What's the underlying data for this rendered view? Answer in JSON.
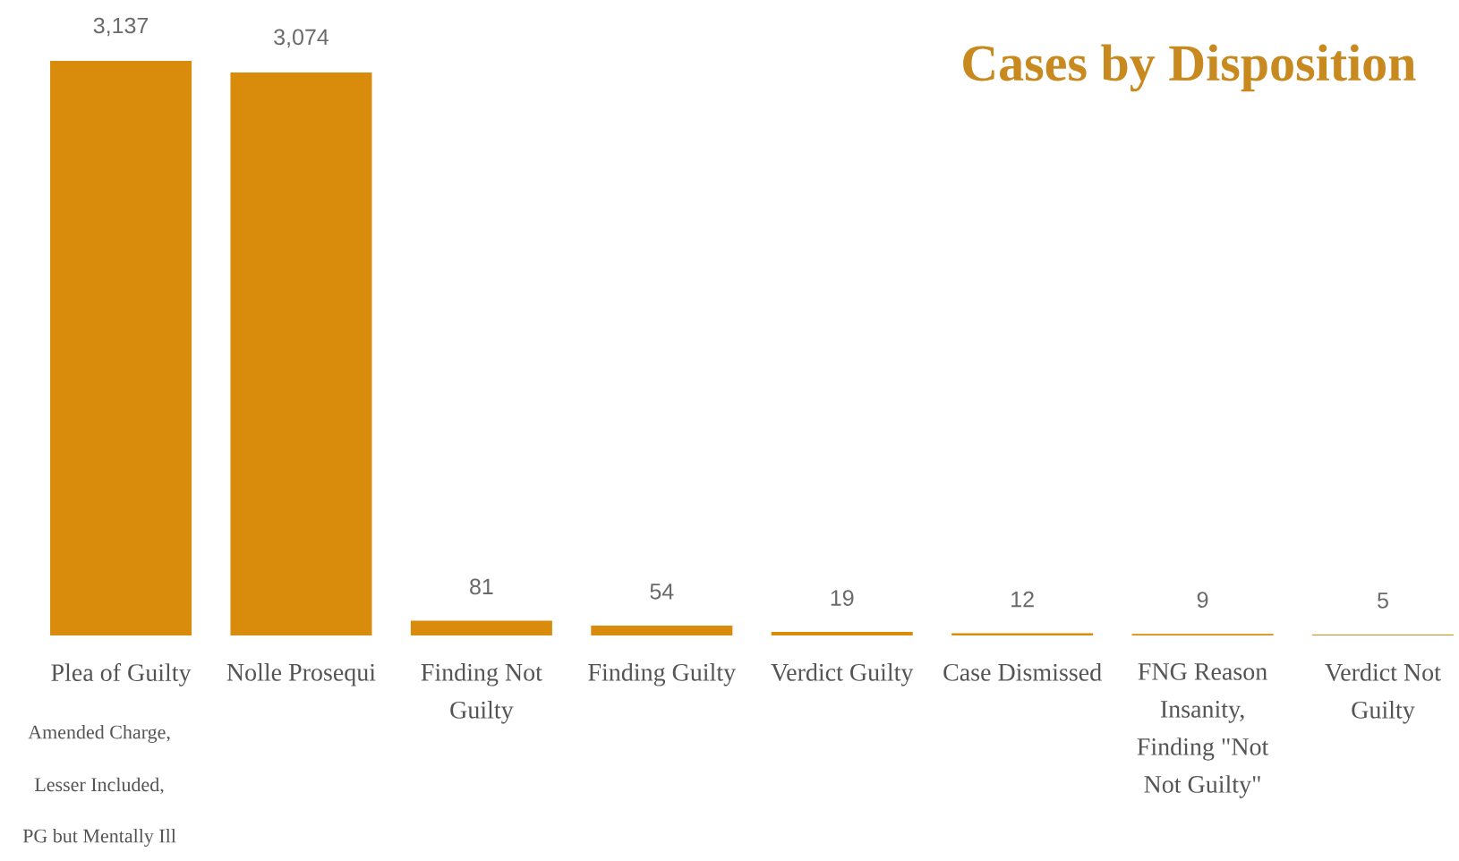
{
  "chart_data": {
    "type": "bar",
    "title": "Cases by Disposition",
    "categories": [
      "Plea of Guilty",
      "Nolle Prosequi",
      "Finding Not Guilty",
      "Finding Guilty",
      "Verdict Guilty",
      "Case Dismissed",
      "FNG Reason Insanity, Finding \"Not Not Guilty\"",
      "Verdict Not Guilty"
    ],
    "values": [
      3137,
      3074,
      81,
      54,
      19,
      12,
      9,
      5
    ],
    "value_labels": [
      "3,137",
      "3,074",
      "81",
      "54",
      "19",
      "12",
      "9",
      "5"
    ],
    "color": "#d98b0b",
    "tick_labels": "x",
    "annotations": [
      "Amended Charge,",
      "Lesser Included,",
      "PG but Mentally Ill"
    ]
  }
}
